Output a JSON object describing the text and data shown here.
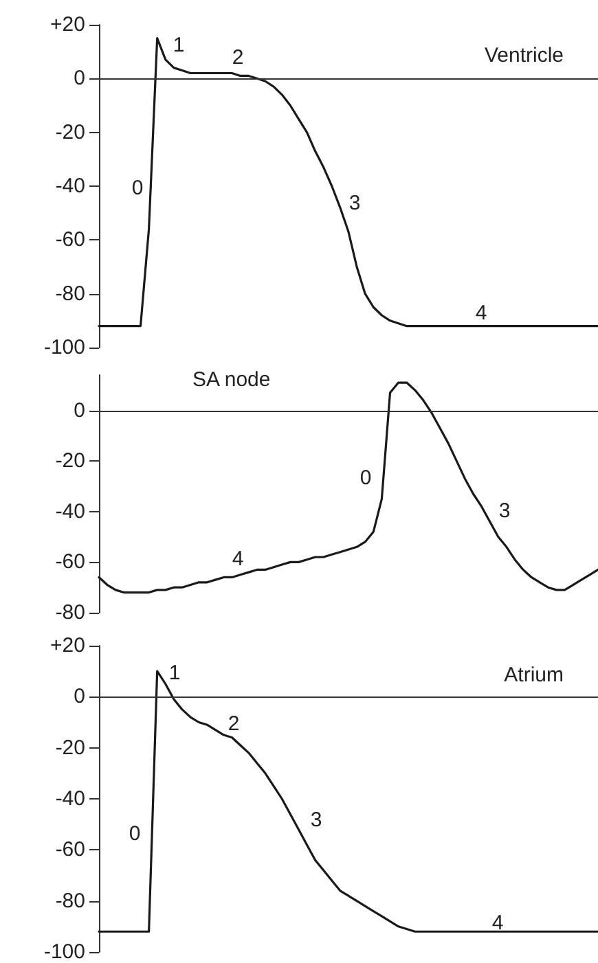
{
  "chart_data": [
    {
      "type": "line",
      "title": "Ventricle",
      "color": "#1a1a1a",
      "marker": "none",
      "tick_labels": "y",
      "categories": [
        null,
        null,
        null,
        null,
        null,
        null,
        null,
        null,
        null,
        null,
        null,
        null,
        null,
        null,
        null,
        null,
        null,
        null,
        null,
        null,
        null,
        null,
        null,
        null,
        null,
        null,
        null,
        null,
        null,
        null,
        null,
        null,
        null,
        null,
        null,
        null,
        null,
        null,
        null,
        null,
        null,
        null,
        null,
        null,
        null,
        null,
        null,
        null,
        null,
        null,
        null,
        null,
        null,
        null,
        null,
        null,
        null,
        null,
        null,
        null,
        null
      ],
      "values": [
        -92,
        -92,
        -92,
        -92,
        -92,
        -92,
        -56,
        15,
        7,
        4,
        3,
        2,
        2,
        2,
        2,
        2,
        2,
        1,
        1,
        0,
        -1,
        -3,
        -6,
        -10,
        -15,
        -20,
        -27,
        -33,
        -40,
        -48,
        -57,
        -70,
        -80,
        -85,
        -88,
        -90,
        -91,
        -92,
        -92,
        -92,
        -92,
        -92,
        -92,
        -92,
        -92,
        -92,
        -92,
        -92,
        -92,
        -92,
        -92,
        -92,
        -92,
        -92,
        -92,
        -92,
        -92,
        -92,
        -92,
        -92,
        -92
      ],
      "annotations": [
        "0",
        "1",
        "2",
        "3",
        "4"
      ],
      "ylim": [
        -100,
        20
      ],
      "yticks": [
        {
          "value": 20,
          "label": "+20"
        },
        0,
        -20,
        -40,
        -60,
        -80,
        -100
      ],
      "ref_lines": [
        {
          "axis": "y",
          "value": 0
        }
      ]
    },
    {
      "type": "line",
      "title": "SA node",
      "color": "#1a1a1a",
      "marker": "none",
      "tick_labels": "y",
      "categories": [
        null,
        null,
        null,
        null,
        null,
        null,
        null,
        null,
        null,
        null,
        null,
        null,
        null,
        null,
        null,
        null,
        null,
        null,
        null,
        null,
        null,
        null,
        null,
        null,
        null,
        null,
        null,
        null,
        null,
        null,
        null,
        null,
        null,
        null,
        null,
        null,
        null,
        null,
        null,
        null,
        null,
        null,
        null,
        null,
        null,
        null,
        null,
        null,
        null,
        null,
        null,
        null,
        null,
        null,
        null,
        null,
        null,
        null,
        null,
        null,
        null
      ],
      "values": [
        -66,
        -69,
        -71,
        -72,
        -72,
        -72,
        -72,
        -71,
        -71,
        -70,
        -70,
        -69,
        -68,
        -68,
        -67,
        -66,
        -66,
        -65,
        -64,
        -63,
        -63,
        -62,
        -61,
        -60,
        -60,
        -59,
        -58,
        -58,
        -57,
        -56,
        -55,
        -54,
        -52,
        -48,
        -35,
        7,
        11,
        11,
        8,
        4,
        -1,
        -7,
        -13,
        -20,
        -27,
        -33,
        -38,
        -44,
        -50,
        -54,
        -59,
        -63,
        -66,
        -68,
        -70,
        -71,
        -71,
        -69,
        -67,
        -65,
        -63
      ],
      "annotations": [
        "4",
        "0",
        "3"
      ],
      "ylim": [
        -80,
        14
      ],
      "yticks": [
        0,
        -20,
        -40,
        -60,
        -80
      ],
      "ref_lines": [
        {
          "axis": "y",
          "value": 0
        }
      ]
    },
    {
      "type": "line",
      "title": "Atrium",
      "color": "#1a1a1a",
      "marker": "none",
      "tick_labels": "y",
      "categories": [
        null,
        null,
        null,
        null,
        null,
        null,
        null,
        null,
        null,
        null,
        null,
        null,
        null,
        null,
        null,
        null,
        null,
        null,
        null,
        null,
        null,
        null,
        null,
        null,
        null,
        null,
        null,
        null,
        null,
        null,
        null,
        null,
        null,
        null,
        null,
        null,
        null,
        null,
        null,
        null,
        null,
        null,
        null,
        null,
        null,
        null,
        null,
        null,
        null,
        null,
        null,
        null,
        null,
        null,
        null,
        null,
        null,
        null,
        null,
        null,
        null
      ],
      "values": [
        -92,
        -92,
        -92,
        -92,
        -92,
        -92,
        -92,
        10,
        5,
        -1,
        -5,
        -8,
        -10,
        -11,
        -13,
        -15,
        -16,
        -19,
        -22,
        -26,
        -30,
        -35,
        -40,
        -46,
        -52,
        -58,
        -64,
        -68,
        -72,
        -76,
        -78,
        -80,
        -82,
        -84,
        -86,
        -88,
        -90,
        -91,
        -92,
        -92,
        -92,
        -92,
        -92,
        -92,
        -92,
        -92,
        -92,
        -92,
        -92,
        -92,
        -92,
        -92,
        -92,
        -92,
        -92,
        -92,
        -92,
        -92,
        -92,
        -92,
        -92
      ],
      "annotations": [
        "0",
        "1",
        "2",
        "3",
        "4"
      ],
      "ylim": [
        -100,
        20
      ],
      "yticks": [
        {
          "value": 20,
          "label": "+20"
        },
        0,
        -20,
        -40,
        -60,
        -80,
        -100
      ],
      "ref_lines": [
        {
          "axis": "y",
          "value": 0
        }
      ]
    }
  ]
}
